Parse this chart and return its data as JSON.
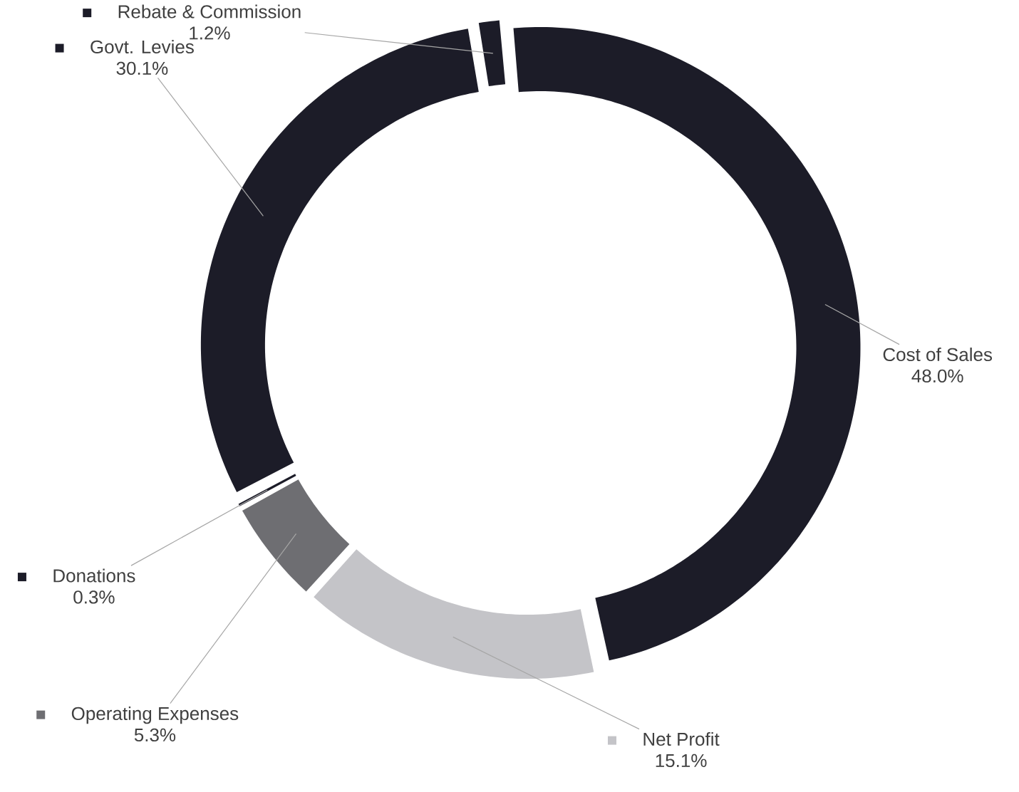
{
  "chart_data": {
    "type": "donut",
    "categories": [
      "Cost of Sales",
      "Net Profit",
      "Operating Expenses",
      "Donations",
      "Govt. Levies",
      "Rebate & Commission"
    ],
    "values": [
      48.0,
      15.1,
      5.3,
      0.3,
      30.1,
      1.2
    ],
    "colors": [
      "#1c1c28",
      "#c4c4c8",
      "#6e6e72",
      "#1c1c28",
      "#1c1c28",
      "#1c1c28"
    ],
    "value_labels": [
      "48.0%",
      "15.1%",
      "5.3%",
      "0.3%",
      "30.1%",
      "1.2%"
    ],
    "legend": "left"
  }
}
